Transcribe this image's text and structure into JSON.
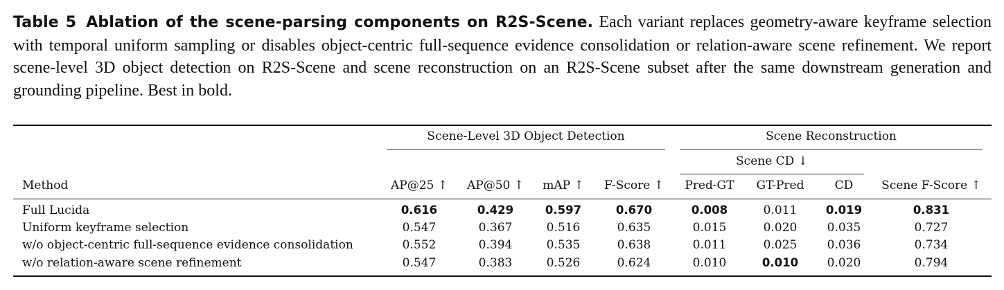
{
  "caption": {
    "label": "Table 5",
    "title": "Ablation of the scene-parsing components on R2S-Scene.",
    "text": "Each variant replaces geometry-aware keyframe selection with temporal uniform sampling or disables object-centric full-sequence evidence consolidation or relation-aware scene refinement. We report scene-level 3D object detection on R2S-Scene and scene reconstruction on an R2S-Scene subset after the same downstream generation and grounding pipeline. Best in bold."
  },
  "table": {
    "group_headers": {
      "detection": "Scene-Level 3D Object Detection",
      "reconstruction": "Scene Reconstruction",
      "scene_cd": "Scene CD ↓"
    },
    "columns": {
      "method": "Method",
      "ap25": "AP@25 ↑",
      "ap50": "AP@50 ↑",
      "map": "mAP ↑",
      "fscore": "F-Score ↑",
      "pred_gt": "Pred-GT",
      "gt_pred": "GT-Pred",
      "cd": "CD",
      "scene_fscore": "Scene F-Score ↑"
    },
    "rows": [
      {
        "method": "Full Lucida",
        "ap25": "0.616",
        "ap50": "0.429",
        "map": "0.597",
        "fscore": "0.670",
        "pred_gt": "0.008",
        "gt_pred": "0.011",
        "cd": "0.019",
        "scene_fscore": "0.831"
      },
      {
        "method": "Uniform keyframe selection",
        "ap25": "0.547",
        "ap50": "0.367",
        "map": "0.516",
        "fscore": "0.635",
        "pred_gt": "0.015",
        "gt_pred": "0.020",
        "cd": "0.035",
        "scene_fscore": "0.727"
      },
      {
        "method": "w/o object-centric full-sequence evidence consolidation",
        "ap25": "0.552",
        "ap50": "0.394",
        "map": "0.535",
        "fscore": "0.638",
        "pred_gt": "0.011",
        "gt_pred": "0.025",
        "cd": "0.036",
        "scene_fscore": "0.734"
      },
      {
        "method": "w/o relation-aware scene refinement",
        "ap25": "0.547",
        "ap50": "0.383",
        "map": "0.526",
        "fscore": "0.624",
        "pred_gt": "0.010",
        "gt_pred": "0.010",
        "cd": "0.020",
        "scene_fscore": "0.794"
      }
    ]
  }
}
